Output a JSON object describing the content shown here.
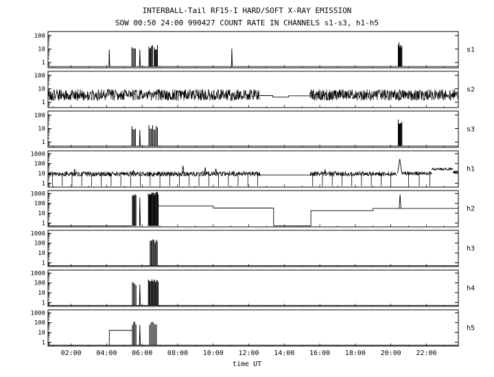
{
  "title": "INTERBALL-Tail RF15-I HARD/SOFT X-RAY EMISSION",
  "subtitle": "SOW 00:50 24:00 990427  COUNT RATE IN CHANNELS s1-s3, h1-h5",
  "xlabel": "time UT",
  "chart_data": {
    "type": "line",
    "y_scale": "log",
    "x_range": [
      0.7,
      23.8
    ],
    "x_ticks": [
      {
        "t": 2,
        "label": "02:00"
      },
      {
        "t": 4,
        "label": "04:00"
      },
      {
        "t": 6,
        "label": "06:00"
      },
      {
        "t": 8,
        "label": "08:00"
      },
      {
        "t": 10,
        "label": "10:00"
      },
      {
        "t": 12,
        "label": "12:00"
      },
      {
        "t": 14,
        "label": "14:00"
      },
      {
        "t": 16,
        "label": "16:00"
      },
      {
        "t": 18,
        "label": "18:00"
      },
      {
        "t": 20,
        "label": "20:00"
      },
      {
        "t": 22,
        "label": "22:00"
      }
    ],
    "panels": [
      {
        "name": "s1",
        "yticks": [
          100,
          10,
          1
        ],
        "ymin": 0.4,
        "ymax": 200,
        "base": 0.5,
        "segments": [
          {
            "p": "flat",
            "t0": 0.7,
            "t1": 23.8,
            "v": 0.5
          },
          {
            "p": "spike",
            "t": 4.15,
            "v": 9
          },
          {
            "p": "band",
            "t0": 5.42,
            "t1": 5.62,
            "v": 14,
            "n": 4,
            "seed": 11
          },
          {
            "p": "spike",
            "t": 5.87,
            "v": 9
          },
          {
            "p": "band",
            "t0": 6.38,
            "t1": 6.58,
            "v": 15,
            "n": 5,
            "seed": 12
          },
          {
            "p": "band",
            "t0": 6.68,
            "t1": 6.86,
            "v": 13,
            "n": 5,
            "seed": 13
          },
          {
            "p": "spike",
            "t": 11.05,
            "v": 11
          },
          {
            "p": "band",
            "t0": 20.42,
            "t1": 20.62,
            "v": 20,
            "n": 6,
            "seed": 14
          }
        ]
      },
      {
        "name": "s2",
        "yticks": [
          100,
          10,
          1
        ],
        "ymin": 0.4,
        "ymax": 200,
        "base": 0.5,
        "segments": [
          {
            "p": "noise",
            "t0": 0.7,
            "t1": 12.6,
            "v": 3.5,
            "amp": 0.85,
            "seed": 21
          },
          {
            "p": "steps",
            "segs": [
              [
                12.6,
                13.35,
                3.1
              ],
              [
                13.35,
                14.25,
                2.4
              ],
              [
                14.25,
                15.45,
                3.0
              ]
            ],
            "startbase": false,
            "endbase": false
          },
          {
            "p": "noise",
            "t0": 15.45,
            "t1": 23.8,
            "v": 3.5,
            "amp": 0.85,
            "seed": 22
          },
          {
            "p": "spike",
            "t": 20.5,
            "v": 9,
            "b": 3.5,
            "w": 0.05
          }
        ]
      },
      {
        "name": "s3",
        "yticks": [
          100,
          10,
          1
        ],
        "ymin": 0.4,
        "ymax": 200,
        "base": 0.5,
        "segments": [
          {
            "p": "flat",
            "t0": 0.7,
            "t1": 23.8,
            "v": 0.5
          },
          {
            "p": "band",
            "t0": 5.42,
            "t1": 5.62,
            "v": 10,
            "n": 4,
            "seed": 31
          },
          {
            "p": "spike",
            "t": 5.87,
            "v": 8
          },
          {
            "p": "band",
            "t0": 6.38,
            "t1": 6.86,
            "v": 12,
            "n": 8,
            "seed": 32
          },
          {
            "p": "band",
            "t0": 20.42,
            "t1": 20.62,
            "v": 30,
            "n": 6,
            "seed": 33
          }
        ]
      },
      {
        "name": "h1",
        "yticks": [
          1000,
          100,
          10,
          1
        ],
        "ymin": 0.4,
        "ymax": 2000,
        "base": 0.5,
        "segments": [
          {
            "p": "noise",
            "t0": 0.7,
            "t1": 12.65,
            "v": 9,
            "amp": 0.5,
            "seed": 41
          },
          {
            "p": "dropouts",
            "t0": 0.95,
            "t1": 12.55,
            "dt": 0.55,
            "v": 10,
            "low": 0.5
          },
          {
            "p": "spike",
            "t": 2.2,
            "v": 28,
            "b": 9,
            "w": 0.05
          },
          {
            "p": "spike",
            "t": 5.5,
            "v": 22,
            "b": 9,
            "w": 0.05
          },
          {
            "p": "spike",
            "t": 8.3,
            "v": 60,
            "b": 9,
            "w": 0.06
          },
          {
            "p": "spike",
            "t": 9.55,
            "v": 40,
            "b": 9,
            "w": 0.05
          },
          {
            "p": "spike",
            "t": 10.15,
            "v": 30,
            "b": 9,
            "w": 0.05
          },
          {
            "p": "flat",
            "t0": 12.65,
            "t1": 15.45,
            "v": 7
          },
          {
            "p": "noise",
            "t0": 15.45,
            "t1": 20.3,
            "v": 9,
            "amp": 0.5,
            "seed": 42
          },
          {
            "p": "dropouts",
            "t0": 15.6,
            "t1": 20.2,
            "dt": 0.55,
            "v": 10,
            "low": 0.5
          },
          {
            "p": "spike",
            "t": 16.3,
            "v": 25,
            "b": 9,
            "w": 0.05
          },
          {
            "p": "spike",
            "t": 20.5,
            "v": 300,
            "b": 10,
            "w": 0.12
          },
          {
            "p": "noise",
            "t0": 20.62,
            "t1": 22.3,
            "v": 10,
            "amp": 0.4,
            "seed": 43
          },
          {
            "p": "dropouts",
            "t0": 21.0,
            "t1": 22.2,
            "dt": 0.6,
            "v": 10,
            "low": 0.5
          },
          {
            "p": "noise",
            "t0": 22.3,
            "t1": 23.5,
            "v": 28,
            "amp": 0.25,
            "seed": 44
          },
          {
            "p": "noise",
            "t0": 23.5,
            "t1": 23.8,
            "v": 14,
            "amp": 0.25,
            "seed": 45
          }
        ]
      },
      {
        "name": "h2",
        "yticks": [
          1000,
          100,
          10,
          1
        ],
        "ymin": 0.4,
        "ymax": 2000,
        "base": 0.5,
        "segments": [
          {
            "p": "flat",
            "t0": 0.7,
            "t1": 5.4,
            "v": 0.5
          },
          {
            "p": "band",
            "t0": 5.45,
            "t1": 5.65,
            "v": 700,
            "n": 5,
            "seed": 51
          },
          {
            "p": "spike",
            "t": 5.87,
            "v": 400
          },
          {
            "p": "band",
            "t0": 6.35,
            "t1": 6.9,
            "v": 1000,
            "n": 14,
            "seed": 52
          },
          {
            "p": "steps",
            "segs": [
              [
                6.9,
                10.0,
                55
              ],
              [
                10.0,
                13.4,
                33
              ]
            ],
            "startbase": true,
            "endbase": true
          },
          {
            "p": "flat",
            "t0": 13.4,
            "t1": 15.5,
            "v": 0.5
          },
          {
            "p": "steps",
            "segs": [
              [
                15.5,
                19.0,
                18
              ],
              [
                19.0,
                23.8,
                30
              ]
            ],
            "startbase": true,
            "endbase": false
          },
          {
            "p": "spike",
            "t": 20.52,
            "v": 800,
            "b": 30,
            "w": 0.05
          }
        ]
      },
      {
        "name": "h3",
        "yticks": [
          1000,
          100,
          10,
          1
        ],
        "ymin": 0.4,
        "ymax": 2000,
        "base": 0.5,
        "segments": [
          {
            "p": "flat",
            "t0": 0.7,
            "t1": 23.8,
            "v": 0.5
          },
          {
            "p": "band",
            "t0": 6.45,
            "t1": 6.85,
            "v": 160,
            "n": 8,
            "seed": 61
          }
        ]
      },
      {
        "name": "h4",
        "yticks": [
          1000,
          100,
          10,
          1
        ],
        "ymin": 0.4,
        "ymax": 2000,
        "base": 0.5,
        "segments": [
          {
            "p": "flat",
            "t0": 0.7,
            "t1": 23.8,
            "v": 0.5
          },
          {
            "p": "band",
            "t0": 5.45,
            "t1": 5.65,
            "v": 90,
            "n": 4,
            "seed": 71
          },
          {
            "p": "spike",
            "t": 5.87,
            "v": 70
          },
          {
            "p": "band",
            "t0": 6.35,
            "t1": 6.9,
            "v": 160,
            "n": 12,
            "seed": 72
          }
        ]
      },
      {
        "name": "h5",
        "yticks": [
          1000,
          100,
          10,
          1
        ],
        "ymin": 0.4,
        "ymax": 2000,
        "base": 0.5,
        "segments": [
          {
            "p": "flat",
            "t0": 0.7,
            "t1": 23.8,
            "v": 0.5
          },
          {
            "p": "steps",
            "segs": [
              [
                4.15,
                5.45,
                16
              ]
            ],
            "startbase": true,
            "endbase": true
          },
          {
            "p": "band",
            "t0": 5.45,
            "t1": 5.65,
            "v": 90,
            "n": 4,
            "seed": 81
          },
          {
            "p": "spike",
            "t": 5.87,
            "v": 60
          },
          {
            "p": "band",
            "t0": 6.42,
            "t1": 6.8,
            "v": 90,
            "n": 6,
            "seed": 82
          }
        ]
      }
    ]
  }
}
